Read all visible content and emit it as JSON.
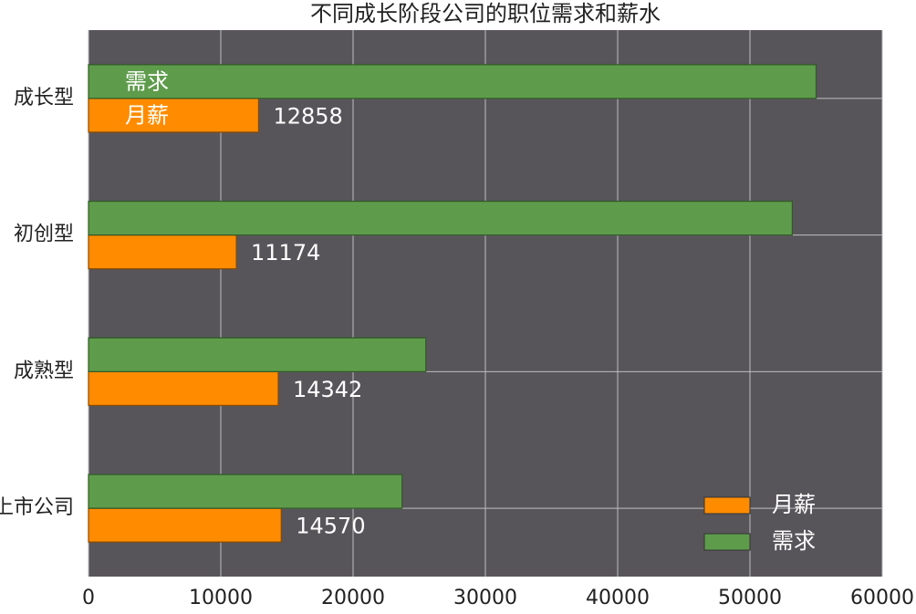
{
  "chart_data": {
    "type": "barh",
    "title": "不同成长阶段公司的职位需求和薪水",
    "categories": [
      "成长型",
      "初创型",
      "成熟型",
      "上市公司"
    ],
    "series": [
      {
        "name": "月薪",
        "color": "#ff8c00",
        "values": [
          12858,
          11174,
          14342,
          14570
        ]
      },
      {
        "name": "需求",
        "color": "#5e9c4c",
        "values": [
          55000,
          53200,
          25500,
          23700
        ]
      }
    ],
    "xlim": [
      0,
      60000
    ],
    "xticks": [
      0,
      10000,
      20000,
      30000,
      40000,
      50000,
      60000
    ],
    "grid": true,
    "legend": "lower right",
    "data_labels_series": 0
  }
}
